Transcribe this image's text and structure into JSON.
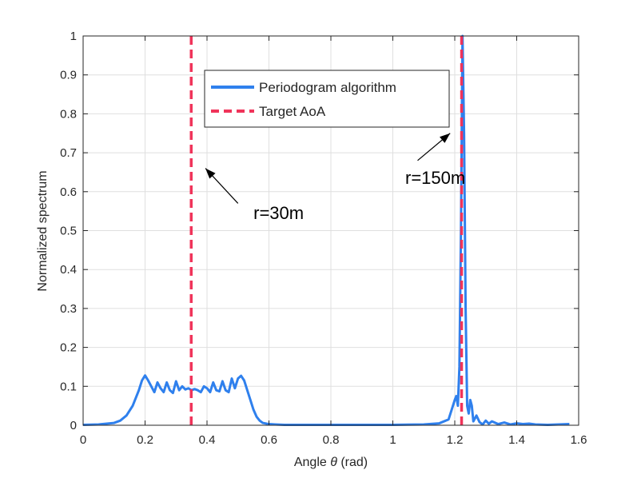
{
  "chart_data": {
    "type": "line",
    "title": "",
    "xlabel_prefix": "Angle ",
    "xlabel_symbol": "θ",
    "xlabel_suffix": " (rad)",
    "ylabel": "Normalized spectrum",
    "xlim": [
      0,
      1.6
    ],
    "ylim": [
      0,
      1
    ],
    "xticks": [
      0,
      0.2,
      0.4,
      0.6,
      0.8,
      1,
      1.2,
      1.4,
      1.6
    ],
    "xtick_labels": [
      "0",
      "0.2",
      "0.4",
      "0.6",
      "0.8",
      "1",
      "1.2",
      "1.4",
      "1.6"
    ],
    "yticks": [
      0,
      0.1,
      0.2,
      0.3,
      0.4,
      0.5,
      0.6,
      0.7,
      0.8,
      0.9,
      1
    ],
    "ytick_labels": [
      "0",
      "0.1",
      "0.2",
      "0.3",
      "0.4",
      "0.5",
      "0.6",
      "0.7",
      "0.8",
      "0.9",
      "1"
    ],
    "grid": true,
    "legend_position": "top-center",
    "series": [
      {
        "name": "Periodogram algorithm",
        "style": "solid",
        "color": "#2f80ed",
        "x": [
          0,
          0.05,
          0.1,
          0.12,
          0.14,
          0.16,
          0.18,
          0.19,
          0.2,
          0.21,
          0.22,
          0.23,
          0.24,
          0.25,
          0.26,
          0.27,
          0.28,
          0.29,
          0.3,
          0.31,
          0.32,
          0.33,
          0.34,
          0.35,
          0.36,
          0.37,
          0.38,
          0.39,
          0.4,
          0.41,
          0.42,
          0.43,
          0.44,
          0.45,
          0.46,
          0.47,
          0.48,
          0.49,
          0.5,
          0.51,
          0.52,
          0.53,
          0.54,
          0.55,
          0.56,
          0.57,
          0.58,
          0.6,
          0.62,
          0.65,
          0.7,
          0.8,
          0.9,
          1.0,
          1.1,
          1.15,
          1.18,
          1.19,
          1.2,
          1.205,
          1.21,
          1.215,
          1.22,
          1.225,
          1.23,
          1.235,
          1.24,
          1.245,
          1.25,
          1.255,
          1.26,
          1.27,
          1.28,
          1.29,
          1.3,
          1.31,
          1.32,
          1.34,
          1.36,
          1.38,
          1.4,
          1.42,
          1.44,
          1.46,
          1.5,
          1.57
        ],
        "y": [
          0.001,
          0.002,
          0.006,
          0.012,
          0.025,
          0.05,
          0.09,
          0.115,
          0.128,
          0.115,
          0.1,
          0.085,
          0.11,
          0.095,
          0.085,
          0.11,
          0.09,
          0.083,
          0.113,
          0.09,
          0.1,
          0.092,
          0.095,
          0.09,
          0.093,
          0.09,
          0.085,
          0.1,
          0.095,
          0.085,
          0.11,
          0.09,
          0.087,
          0.113,
          0.09,
          0.085,
          0.12,
          0.095,
          0.12,
          0.127,
          0.115,
          0.09,
          0.065,
          0.04,
          0.022,
          0.012,
          0.006,
          0.003,
          0.002,
          0.001,
          0.001,
          0.001,
          0.001,
          0.001,
          0.002,
          0.005,
          0.015,
          0.04,
          0.065,
          0.075,
          0.05,
          0.15,
          0.5,
          1.0,
          0.75,
          0.3,
          0.05,
          0.03,
          0.065,
          0.05,
          0.01,
          0.025,
          0.008,
          0.002,
          0.012,
          0.004,
          0.01,
          0.003,
          0.007,
          0.002,
          0.005,
          0.003,
          0.004,
          0.002,
          0.001,
          0.003
        ]
      },
      {
        "name": "Target AoA",
        "style": "dashed",
        "color": "#f0345a",
        "x_values": [
          0.349,
          1.222
        ]
      }
    ],
    "annotations": [
      {
        "text": "r=30m",
        "text_x": 0.55,
        "text_y": 0.53,
        "arrow_from": [
          0.5,
          0.57
        ],
        "arrow_to": [
          0.395,
          0.66
        ]
      },
      {
        "text": "r=150m",
        "text_x": 1.04,
        "text_y": 0.62,
        "arrow_from": [
          1.08,
          0.68
        ],
        "arrow_to": [
          1.185,
          0.75
        ]
      }
    ]
  }
}
